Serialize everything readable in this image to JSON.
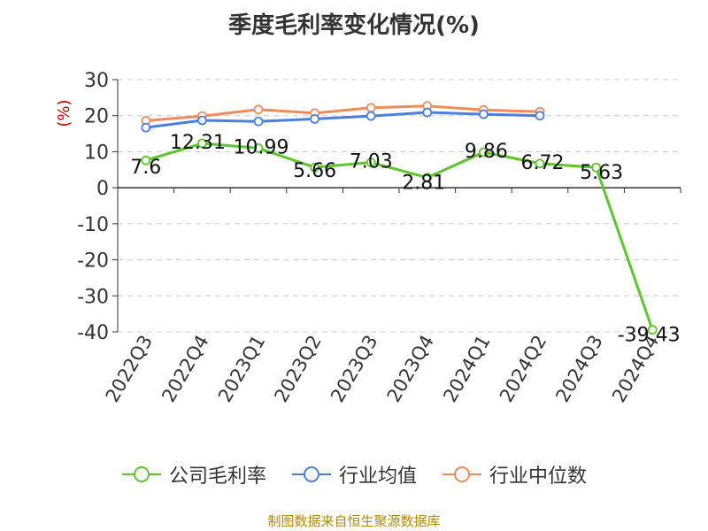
{
  "chart_data": {
    "type": "line",
    "title": "季度毛利率变化情况(%)",
    "ylabel": "(%)",
    "xlabel": "",
    "categories": [
      "2022Q3",
      "2022Q4",
      "2023Q1",
      "2023Q2",
      "2023Q3",
      "2023Q4",
      "2024Q1",
      "2024Q2",
      "2024Q3",
      "2024Q4"
    ],
    "ylim": [
      -40,
      30
    ],
    "yticks": [
      "30",
      "20",
      "10",
      "0",
      "-10",
      "-20",
      "-30",
      "-40"
    ],
    "grid": true,
    "legend_position": "bottom",
    "series": [
      {
        "name": "公司毛利率",
        "color": "#5cc62c",
        "values": [
          7.6,
          12.31,
          10.99,
          5.66,
          7.03,
          2.81,
          9.86,
          6.72,
          5.63,
          -39.43
        ],
        "labels": [
          "7.6",
          "12.31",
          "10.99",
          "5.66",
          "7.03",
          "2.81",
          "9.86",
          "6.72",
          "5.63",
          "-39.43"
        ]
      },
      {
        "name": "行业均值",
        "color": "#4a7fe0",
        "values": [
          16.7,
          18.7,
          18.4,
          19.1,
          19.9,
          20.9,
          20.4,
          20.0,
          null,
          null
        ]
      },
      {
        "name": "行业中位数",
        "color": "#f08c5a",
        "values": [
          18.6,
          19.9,
          21.7,
          20.7,
          22.2,
          22.7,
          21.6,
          21.1,
          null,
          null
        ]
      }
    ]
  },
  "source_note": "制图数据来自恒生聚源数据库"
}
